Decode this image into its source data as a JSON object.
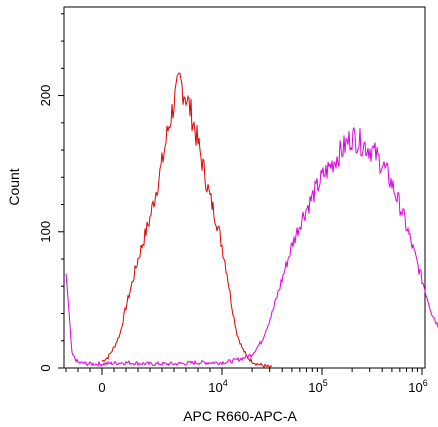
{
  "chart_data": {
    "type": "line",
    "title": "",
    "xlabel": "APC R660-APC-A",
    "ylabel": "Count",
    "ylim": [
      0,
      265
    ],
    "y_ticks": [
      {
        "value": 0,
        "label": "0"
      },
      {
        "value": 100,
        "label": "100"
      },
      {
        "value": 200,
        "label": "200"
      }
    ],
    "x_ticks": [
      {
        "label": "0",
        "exp": ""
      },
      {
        "label": "10",
        "exp": "4"
      },
      {
        "label": "10",
        "exp": "5"
      },
      {
        "label": "10",
        "exp": "6"
      }
    ],
    "grid": false,
    "legend": "none",
    "series": [
      {
        "color": "#e00000",
        "x": [
          0.0,
          0.05,
          0.1,
          0.15,
          0.2,
          0.25,
          0.3,
          0.35,
          0.4,
          0.45,
          0.5,
          0.55,
          0.6,
          0.65,
          0.7,
          0.75,
          0.8,
          0.85,
          0.9,
          0.95,
          1.0,
          1.05,
          1.1,
          1.15,
          1.2,
          1.25,
          1.3,
          1.35,
          1.4,
          1.45,
          1.5
        ],
        "y": [
          5,
          8,
          15,
          25,
          45,
          62,
          80,
          95,
          110,
          130,
          150,
          175,
          195,
          210,
          200,
          185,
          165,
          145,
          125,
          110,
          90,
          70,
          45,
          25,
          15,
          8,
          5,
          3,
          2,
          1,
          0
        ]
      },
      {
        "color": "#e000e0",
        "x": [
          -0.3,
          -0.25,
          -0.2,
          -0.1,
          0.0,
          0.2,
          0.4,
          0.6,
          0.8,
          1.0,
          1.1,
          1.2,
          1.3,
          1.4,
          1.5,
          1.6,
          1.7,
          1.8,
          1.9,
          2.0,
          2.1,
          2.2,
          2.3,
          2.4,
          2.5,
          2.6,
          2.7,
          2.8,
          2.9,
          3.0,
          3.1,
          3.2,
          3.3,
          3.4,
          3.5,
          3.6,
          3.7,
          3.8,
          3.9,
          4.0,
          4.1,
          4.2,
          4.3,
          4.4,
          4.5,
          4.6,
          4.7,
          4.8,
          4.9,
          4.95,
          5.0
        ],
        "y": [
          70,
          10,
          4,
          3,
          3,
          4,
          3,
          3,
          4,
          4,
          5,
          7,
          10,
          20,
          40,
          65,
          90,
          110,
          125,
          140,
          150,
          160,
          170,
          165,
          160,
          150,
          135,
          115,
          90,
          65,
          40,
          25,
          15,
          8,
          6,
          5,
          4,
          4,
          3,
          3,
          4,
          4,
          3,
          3,
          4,
          3,
          3,
          4,
          5,
          30,
          10
        ]
      }
    ]
  }
}
